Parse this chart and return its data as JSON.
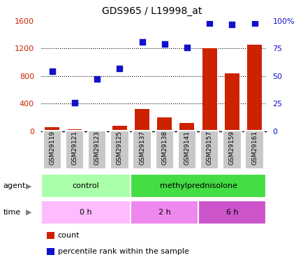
{
  "title": "GDS965 / L19998_at",
  "samples": [
    "GSM29119",
    "GSM29121",
    "GSM29123",
    "GSM29125",
    "GSM29137",
    "GSM29138",
    "GSM29141",
    "GSM29157",
    "GSM29159",
    "GSM29161"
  ],
  "counts": [
    55,
    30,
    20,
    80,
    320,
    195,
    120,
    1200,
    840,
    1250
  ],
  "percentile": [
    54,
    26,
    47,
    57,
    81,
    79,
    76,
    98,
    97,
    98
  ],
  "ylim_left": [
    0,
    1600
  ],
  "ylim_right": [
    0,
    100
  ],
  "yticks_left": [
    0,
    400,
    800,
    1200,
    1600
  ],
  "yticks_right": [
    0,
    25,
    50,
    75,
    100
  ],
  "ytick_labels_left": [
    "0",
    "400",
    "800",
    "1200",
    "1600"
  ],
  "ytick_labels_right": [
    "0",
    "25",
    "50",
    "75",
    "100%"
  ],
  "bar_color": "#cc2200",
  "scatter_color": "#1111cc",
  "agent_groups": [
    {
      "label": "control",
      "start": 0,
      "end": 4,
      "color": "#aaffaa"
    },
    {
      "label": "methylprednisolone",
      "start": 4,
      "end": 10,
      "color": "#44dd44"
    }
  ],
  "time_groups": [
    {
      "label": "0 h",
      "start": 0,
      "end": 4,
      "color": "#ffbbff"
    },
    {
      "label": "2 h",
      "start": 4,
      "end": 7,
      "color": "#ee88ee"
    },
    {
      "label": "6 h",
      "start": 7,
      "end": 10,
      "color": "#cc55cc"
    }
  ],
  "legend_count_label": "count",
  "legend_pct_label": "percentile rank within the sample",
  "left_axis_color": "#cc2200",
  "right_axis_color": "#1111cc",
  "xlabel_box_color": "#c8c8c8",
  "agent_label": "agent",
  "time_label": "time"
}
